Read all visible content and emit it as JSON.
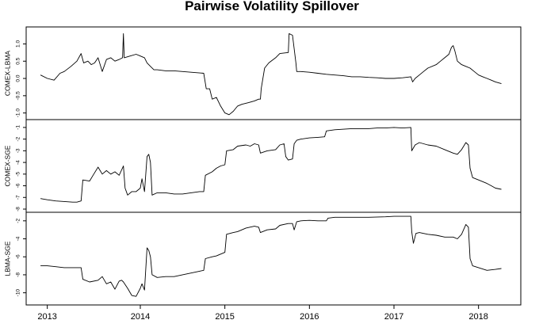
{
  "chart_data": {
    "type": "line",
    "title": "Pairwise Volatility Spillover",
    "x_range": [
      2012.65,
      2018.5
    ],
    "x_ticks": [
      {
        "label": "2013",
        "value": 2012.9
      },
      {
        "label": "2014",
        "value": 2014.0
      },
      {
        "label": "2015",
        "value": 2015.0
      },
      {
        "label": "2016",
        "value": 2016.0
      },
      {
        "label": "2017",
        "value": 2017.0
      },
      {
        "label": "2018",
        "value": 2018.0
      }
    ],
    "panels": [
      {
        "name": "COMEX-LBMA",
        "ylim": [
          -1.1,
          1.4
        ],
        "y_ticks": [
          "1.0",
          "0.5",
          "0.0",
          "-0.5",
          "-1.0"
        ],
        "y_tick_values": [
          1.0,
          0.5,
          0.0,
          -0.5,
          -1.0
        ],
        "points": [
          [
            2012.82,
            0.1
          ],
          [
            2012.9,
            0.0
          ],
          [
            2012.98,
            -0.05
          ],
          [
            2013.05,
            0.15
          ],
          [
            2013.1,
            0.2
          ],
          [
            2013.18,
            0.35
          ],
          [
            2013.25,
            0.5
          ],
          [
            2013.3,
            0.72
          ],
          [
            2013.33,
            0.45
          ],
          [
            2013.38,
            0.5
          ],
          [
            2013.42,
            0.4
          ],
          [
            2013.46,
            0.45
          ],
          [
            2013.5,
            0.6
          ],
          [
            2013.55,
            0.2
          ],
          [
            2013.6,
            0.55
          ],
          [
            2013.65,
            0.6
          ],
          [
            2013.7,
            0.5
          ],
          [
            2013.75,
            0.55
          ],
          [
            2013.79,
            0.6
          ],
          [
            2013.8,
            1.3
          ],
          [
            2013.81,
            0.6
          ],
          [
            2013.88,
            0.65
          ],
          [
            2013.95,
            0.7
          ],
          [
            2014.0,
            0.65
          ],
          [
            2014.05,
            0.6
          ],
          [
            2014.08,
            0.45
          ],
          [
            2014.12,
            0.35
          ],
          [
            2014.16,
            0.25
          ],
          [
            2014.2,
            0.25
          ],
          [
            2014.3,
            0.22
          ],
          [
            2014.4,
            0.22
          ],
          [
            2014.5,
            0.2
          ],
          [
            2014.6,
            0.18
          ],
          [
            2014.75,
            0.15
          ],
          [
            2014.78,
            -0.3
          ],
          [
            2014.82,
            -0.3
          ],
          [
            2014.85,
            -0.6
          ],
          [
            2014.9,
            -0.55
          ],
          [
            2014.95,
            -0.8
          ],
          [
            2015.0,
            -1.0
          ],
          [
            2015.05,
            -1.05
          ],
          [
            2015.1,
            -0.95
          ],
          [
            2015.15,
            -0.8
          ],
          [
            2015.2,
            -0.75
          ],
          [
            2015.28,
            -0.7
          ],
          [
            2015.35,
            -0.65
          ],
          [
            2015.4,
            -0.6
          ],
          [
            2015.42,
            -0.6
          ],
          [
            2015.43,
            -0.3
          ],
          [
            2015.47,
            0.3
          ],
          [
            2015.52,
            0.45
          ],
          [
            2015.6,
            0.6
          ],
          [
            2015.65,
            0.72
          ],
          [
            2015.75,
            0.75
          ],
          [
            2015.76,
            1.3
          ],
          [
            2015.8,
            1.25
          ],
          [
            2015.84,
            0.45
          ],
          [
            2015.85,
            0.2
          ],
          [
            2015.9,
            0.2
          ],
          [
            2016.0,
            0.18
          ],
          [
            2016.1,
            0.15
          ],
          [
            2016.2,
            0.12
          ],
          [
            2016.3,
            0.1
          ],
          [
            2016.4,
            0.08
          ],
          [
            2016.5,
            0.05
          ],
          [
            2016.6,
            0.05
          ],
          [
            2016.7,
            0.03
          ],
          [
            2016.8,
            0.02
          ],
          [
            2016.9,
            0.0
          ],
          [
            2017.0,
            0.0
          ],
          [
            2017.1,
            0.02
          ],
          [
            2017.2,
            0.05
          ],
          [
            2017.22,
            -0.1
          ],
          [
            2017.25,
            0.0
          ],
          [
            2017.3,
            0.1
          ],
          [
            2017.35,
            0.2
          ],
          [
            2017.4,
            0.3
          ],
          [
            2017.5,
            0.4
          ],
          [
            2017.55,
            0.5
          ],
          [
            2017.6,
            0.6
          ],
          [
            2017.65,
            0.7
          ],
          [
            2017.68,
            0.9
          ],
          [
            2017.7,
            0.95
          ],
          [
            2017.72,
            0.8
          ],
          [
            2017.75,
            0.5
          ],
          [
            2017.8,
            0.4
          ],
          [
            2017.85,
            0.35
          ],
          [
            2017.9,
            0.3
          ],
          [
            2017.95,
            0.2
          ],
          [
            2018.0,
            0.1
          ],
          [
            2018.05,
            0.05
          ],
          [
            2018.1,
            0.0
          ],
          [
            2018.15,
            -0.05
          ],
          [
            2018.2,
            -0.1
          ],
          [
            2018.27,
            -0.15
          ]
        ]
      },
      {
        "name": "COMEX-SGE",
        "ylim": [
          -8,
          -0.6
        ],
        "y_ticks": [
          "-1",
          "-2",
          "-3",
          "-4",
          "-5",
          "-6",
          "-7",
          "-8"
        ],
        "y_tick_values": [
          -1,
          -2,
          -3,
          -4,
          -5,
          -6,
          -7,
          -8
        ],
        "points": [
          [
            2012.82,
            -7.1
          ],
          [
            2012.9,
            -7.2
          ],
          [
            2013.0,
            -7.3
          ],
          [
            2013.1,
            -7.35
          ],
          [
            2013.2,
            -7.4
          ],
          [
            2013.25,
            -7.4
          ],
          [
            2013.3,
            -7.3
          ],
          [
            2013.32,
            -5.5
          ],
          [
            2013.4,
            -5.6
          ],
          [
            2013.45,
            -5.0
          ],
          [
            2013.5,
            -4.4
          ],
          [
            2013.55,
            -5.0
          ],
          [
            2013.6,
            -4.7
          ],
          [
            2013.65,
            -5.0
          ],
          [
            2013.7,
            -4.8
          ],
          [
            2013.75,
            -5.1
          ],
          [
            2013.8,
            -4.3
          ],
          [
            2013.82,
            -6.2
          ],
          [
            2013.85,
            -6.8
          ],
          [
            2013.9,
            -6.5
          ],
          [
            2013.95,
            -6.5
          ],
          [
            2014.0,
            -6.2
          ],
          [
            2014.02,
            -5.4
          ],
          [
            2014.05,
            -6.5
          ],
          [
            2014.08,
            -3.5
          ],
          [
            2014.1,
            -3.3
          ],
          [
            2014.12,
            -4.0
          ],
          [
            2014.14,
            -6.8
          ],
          [
            2014.2,
            -6.6
          ],
          [
            2014.3,
            -6.6
          ],
          [
            2014.4,
            -6.7
          ],
          [
            2014.5,
            -6.7
          ],
          [
            2014.6,
            -6.6
          ],
          [
            2014.7,
            -6.5
          ],
          [
            2014.75,
            -6.5
          ],
          [
            2014.77,
            -5.1
          ],
          [
            2014.85,
            -4.8
          ],
          [
            2014.9,
            -4.5
          ],
          [
            2014.95,
            -4.3
          ],
          [
            2015.0,
            -4.2
          ],
          [
            2015.02,
            -3.0
          ],
          [
            2015.1,
            -2.9
          ],
          [
            2015.15,
            -2.6
          ],
          [
            2015.25,
            -2.5
          ],
          [
            2015.3,
            -2.6
          ],
          [
            2015.35,
            -2.4
          ],
          [
            2015.4,
            -2.5
          ],
          [
            2015.42,
            -3.2
          ],
          [
            2015.5,
            -3.0
          ],
          [
            2015.6,
            -2.9
          ],
          [
            2015.65,
            -2.5
          ],
          [
            2015.7,
            -2.4
          ],
          [
            2015.72,
            -3.5
          ],
          [
            2015.75,
            -3.8
          ],
          [
            2015.8,
            -3.7
          ],
          [
            2015.82,
            -2.4
          ],
          [
            2015.85,
            -2.1
          ],
          [
            2015.9,
            -2.0
          ],
          [
            2016.0,
            -1.9
          ],
          [
            2016.1,
            -1.85
          ],
          [
            2016.18,
            -1.8
          ],
          [
            2016.2,
            -1.3
          ],
          [
            2016.3,
            -1.2
          ],
          [
            2016.5,
            -1.1
          ],
          [
            2016.7,
            -1.1
          ],
          [
            2016.8,
            -1.05
          ],
          [
            2016.9,
            -1.05
          ],
          [
            2017.0,
            -1.0
          ],
          [
            2017.1,
            -1.05
          ],
          [
            2017.2,
            -1.0
          ],
          [
            2017.21,
            -3.0
          ],
          [
            2017.25,
            -2.5
          ],
          [
            2017.3,
            -2.3
          ],
          [
            2017.4,
            -2.5
          ],
          [
            2017.5,
            -2.6
          ],
          [
            2017.6,
            -2.9
          ],
          [
            2017.7,
            -3.2
          ],
          [
            2017.75,
            -3.3
          ],
          [
            2017.8,
            -2.9
          ],
          [
            2017.85,
            -2.3
          ],
          [
            2017.88,
            -2.5
          ],
          [
            2017.9,
            -4.5
          ],
          [
            2017.93,
            -5.3
          ],
          [
            2018.0,
            -5.5
          ],
          [
            2018.1,
            -5.8
          ],
          [
            2018.15,
            -6.0
          ],
          [
            2018.2,
            -6.2
          ],
          [
            2018.27,
            -6.3
          ]
        ]
      },
      {
        "name": "LBMA-SGE",
        "ylim": [
          -11,
          -1.4
        ],
        "y_ticks": [
          "-2",
          "-4",
          "-6",
          "-8",
          "-10"
        ],
        "y_tick_values": [
          -2,
          -4,
          -6,
          -8,
          -10
        ],
        "points": [
          [
            2012.82,
            -7.0
          ],
          [
            2012.9,
            -7.0
          ],
          [
            2013.0,
            -7.1
          ],
          [
            2013.1,
            -7.2
          ],
          [
            2013.2,
            -7.2
          ],
          [
            2013.3,
            -7.2
          ],
          [
            2013.32,
            -8.5
          ],
          [
            2013.4,
            -8.8
          ],
          [
            2013.5,
            -8.6
          ],
          [
            2013.55,
            -8.2
          ],
          [
            2013.6,
            -9.0
          ],
          [
            2013.65,
            -8.8
          ],
          [
            2013.7,
            -9.6
          ],
          [
            2013.75,
            -8.7
          ],
          [
            2013.78,
            -8.6
          ],
          [
            2013.8,
            -8.8
          ],
          [
            2013.85,
            -9.5
          ],
          [
            2013.9,
            -10.3
          ],
          [
            2013.95,
            -10.4
          ],
          [
            2014.0,
            -9.5
          ],
          [
            2014.02,
            -9.0
          ],
          [
            2014.05,
            -9.7
          ],
          [
            2014.08,
            -5.0
          ],
          [
            2014.1,
            -5.3
          ],
          [
            2014.12,
            -6.0
          ],
          [
            2014.14,
            -8.0
          ],
          [
            2014.2,
            -8.3
          ],
          [
            2014.3,
            -8.2
          ],
          [
            2014.4,
            -8.2
          ],
          [
            2014.5,
            -8.0
          ],
          [
            2014.6,
            -7.8
          ],
          [
            2014.7,
            -7.6
          ],
          [
            2014.75,
            -7.5
          ],
          [
            2014.77,
            -6.2
          ],
          [
            2014.85,
            -6.0
          ],
          [
            2014.9,
            -5.9
          ],
          [
            2015.0,
            -5.5
          ],
          [
            2015.02,
            -3.5
          ],
          [
            2015.1,
            -3.3
          ],
          [
            2015.15,
            -3.2
          ],
          [
            2015.25,
            -2.8
          ],
          [
            2015.35,
            -2.6
          ],
          [
            2015.4,
            -2.7
          ],
          [
            2015.42,
            -3.3
          ],
          [
            2015.5,
            -3.0
          ],
          [
            2015.6,
            -2.9
          ],
          [
            2015.65,
            -2.5
          ],
          [
            2015.75,
            -2.3
          ],
          [
            2015.8,
            -2.3
          ],
          [
            2015.82,
            -3.0
          ],
          [
            2015.85,
            -2.1
          ],
          [
            2015.9,
            -2.0
          ],
          [
            2016.0,
            -1.95
          ],
          [
            2016.1,
            -2.0
          ],
          [
            2016.2,
            -2.0
          ],
          [
            2016.22,
            -1.7
          ],
          [
            2016.3,
            -1.6
          ],
          [
            2016.5,
            -1.6
          ],
          [
            2016.7,
            -1.6
          ],
          [
            2016.9,
            -1.55
          ],
          [
            2017.0,
            -1.5
          ],
          [
            2017.1,
            -1.5
          ],
          [
            2017.2,
            -1.5
          ],
          [
            2017.21,
            -3.2
          ],
          [
            2017.23,
            -4.5
          ],
          [
            2017.26,
            -3.4
          ],
          [
            2017.3,
            -3.3
          ],
          [
            2017.4,
            -3.5
          ],
          [
            2017.5,
            -3.6
          ],
          [
            2017.6,
            -3.8
          ],
          [
            2017.7,
            -3.8
          ],
          [
            2017.75,
            -4.0
          ],
          [
            2017.8,
            -3.5
          ],
          [
            2017.85,
            -2.4
          ],
          [
            2017.88,
            -2.7
          ],
          [
            2017.9,
            -6.2
          ],
          [
            2017.93,
            -7.0
          ],
          [
            2018.0,
            -7.2
          ],
          [
            2018.1,
            -7.5
          ],
          [
            2018.2,
            -7.4
          ],
          [
            2018.27,
            -7.3
          ]
        ]
      }
    ]
  }
}
